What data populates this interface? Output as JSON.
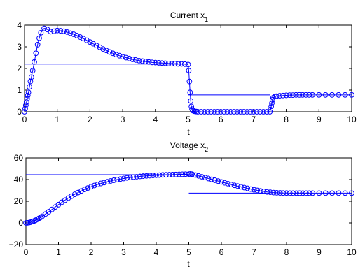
{
  "chart_data": [
    {
      "type": "scatter",
      "title": "Current x",
      "title_subscript": "1",
      "xlabel": "t",
      "ylabel": "",
      "xlim": [
        0,
        10
      ],
      "ylim": [
        0,
        4
      ],
      "xticks": [
        "0",
        "1",
        "2",
        "3",
        "4",
        "5",
        "6",
        "7",
        "8",
        "9",
        "10"
      ],
      "yticks": [
        "0",
        "1",
        "2",
        "3",
        "4"
      ],
      "marker": "circle",
      "color": "#0000ff",
      "series": [
        {
          "style": "markers",
          "x": [
            0.0,
            0.02,
            0.04,
            0.06,
            0.08,
            0.1,
            0.12,
            0.15,
            0.18,
            0.21,
            0.25,
            0.3,
            0.35,
            0.4,
            0.45,
            0.5,
            0.6,
            0.7,
            0.8,
            0.9,
            1.0,
            1.1,
            1.2,
            1.3,
            1.4,
            1.5,
            1.6,
            1.7,
            1.8,
            1.9,
            2.0,
            2.1,
            2.2,
            2.3,
            2.4,
            2.5,
            2.6,
            2.7,
            2.8,
            2.9,
            3.0,
            3.1,
            3.2,
            3.3,
            3.4,
            3.5,
            3.6,
            3.7,
            3.8,
            3.9,
            4.0,
            4.1,
            4.2,
            4.3,
            4.4,
            4.5,
            4.6,
            4.7,
            4.8,
            4.9,
            5.0,
            5.02,
            5.04,
            5.06,
            5.08,
            5.1,
            5.12,
            5.15,
            5.2,
            5.25,
            5.3,
            5.4,
            5.5,
            5.6,
            5.7,
            5.8,
            5.9,
            6.0,
            6.1,
            6.2,
            6.3,
            6.4,
            6.5,
            6.6,
            6.7,
            6.8,
            6.9,
            7.0,
            7.1,
            7.2,
            7.3,
            7.4,
            7.5,
            7.52,
            7.54,
            7.56,
            7.58,
            7.6,
            7.65,
            7.7,
            7.8,
            7.9,
            8.0,
            8.1,
            8.2,
            8.3,
            8.4,
            8.5,
            8.6,
            8.7,
            8.8,
            9.0,
            9.2,
            9.4,
            9.6,
            9.8,
            10.0
          ],
          "y": [
            0.0,
            0.15,
            0.3,
            0.45,
            0.6,
            0.75,
            0.9,
            1.15,
            1.4,
            1.6,
            1.9,
            2.3,
            2.7,
            3.1,
            3.4,
            3.65,
            3.85,
            3.8,
            3.7,
            3.72,
            3.75,
            3.74,
            3.72,
            3.68,
            3.63,
            3.58,
            3.52,
            3.45,
            3.38,
            3.3,
            3.22,
            3.14,
            3.06,
            2.98,
            2.9,
            2.83,
            2.76,
            2.7,
            2.64,
            2.59,
            2.54,
            2.5,
            2.46,
            2.42,
            2.39,
            2.36,
            2.34,
            2.32,
            2.3,
            2.28,
            2.27,
            2.26,
            2.25,
            2.24,
            2.23,
            2.22,
            2.22,
            2.21,
            2.21,
            2.2,
            2.18,
            1.9,
            1.4,
            0.9,
            0.5,
            0.25,
            0.12,
            0.05,
            0.02,
            0.01,
            0.0,
            0.0,
            0.0,
            0.0,
            0.0,
            0.0,
            0.0,
            0.0,
            0.0,
            0.0,
            0.0,
            0.0,
            0.0,
            0.0,
            0.0,
            0.0,
            0.0,
            0.0,
            0.0,
            0.0,
            0.0,
            0.0,
            0.0,
            0.1,
            0.25,
            0.4,
            0.55,
            0.65,
            0.7,
            0.72,
            0.74,
            0.75,
            0.76,
            0.77,
            0.77,
            0.78,
            0.78,
            0.78,
            0.78,
            0.78,
            0.78,
            0.78,
            0.78,
            0.78,
            0.78,
            0.78,
            0.78
          ]
        },
        {
          "style": "line",
          "x": [
            0,
            5
          ],
          "y": [
            2.2,
            2.2
          ]
        },
        {
          "style": "line",
          "x": [
            5,
            7.5
          ],
          "y": [
            0.78,
            0.78
          ]
        }
      ]
    },
    {
      "type": "scatter",
      "title": "Voltage x",
      "title_subscript": "2",
      "xlabel": "t",
      "ylabel": "",
      "xlim": [
        0,
        10
      ],
      "ylim": [
        -20,
        60
      ],
      "xticks": [
        "0",
        "1",
        "2",
        "3",
        "4",
        "5",
        "6",
        "7",
        "8",
        "9",
        "10"
      ],
      "yticks": [
        "−20",
        "0",
        "20",
        "40",
        "60"
      ],
      "marker": "circle",
      "color": "#0000ff",
      "series": [
        {
          "style": "markers",
          "x": [
            0.0,
            0.05,
            0.1,
            0.15,
            0.2,
            0.25,
            0.3,
            0.35,
            0.4,
            0.45,
            0.5,
            0.6,
            0.7,
            0.8,
            0.9,
            1.0,
            1.1,
            1.2,
            1.3,
            1.4,
            1.5,
            1.6,
            1.7,
            1.8,
            1.9,
            2.0,
            2.1,
            2.2,
            2.3,
            2.4,
            2.5,
            2.6,
            2.7,
            2.8,
            2.9,
            3.0,
            3.1,
            3.2,
            3.3,
            3.4,
            3.5,
            3.6,
            3.7,
            3.8,
            3.9,
            4.0,
            4.1,
            4.2,
            4.3,
            4.4,
            4.5,
            4.6,
            4.7,
            4.8,
            4.9,
            5.0,
            5.05,
            5.1,
            5.2,
            5.3,
            5.4,
            5.5,
            5.6,
            5.7,
            5.8,
            5.9,
            6.0,
            6.1,
            6.2,
            6.3,
            6.4,
            6.5,
            6.6,
            6.7,
            6.8,
            6.9,
            7.0,
            7.1,
            7.2,
            7.3,
            7.4,
            7.5,
            7.6,
            7.7,
            7.8,
            7.9,
            8.0,
            8.1,
            8.2,
            8.3,
            8.4,
            8.5,
            8.6,
            8.7,
            8.8,
            9.0,
            9.2,
            9.4,
            9.6,
            9.8,
            10.0
          ],
          "y": [
            0.0,
            0.1,
            0.3,
            0.7,
            1.2,
            1.8,
            2.5,
            3.3,
            4.2,
            5.1,
            6.1,
            8.2,
            10.3,
            12.5,
            14.7,
            16.9,
            19.0,
            21.0,
            22.9,
            24.7,
            26.4,
            28.0,
            29.5,
            30.9,
            32.2,
            33.4,
            34.5,
            35.5,
            36.4,
            37.2,
            38.0,
            38.7,
            39.4,
            40.0,
            40.5,
            41.0,
            41.5,
            41.9,
            42.3,
            42.6,
            42.9,
            43.2,
            43.4,
            43.6,
            43.8,
            44.0,
            44.1,
            44.3,
            44.4,
            44.5,
            44.6,
            44.7,
            44.8,
            44.9,
            45.0,
            45.1,
            45.2,
            45.0,
            44.2,
            43.4,
            42.6,
            41.8,
            41.0,
            40.2,
            39.4,
            38.6,
            37.8,
            37.0,
            36.2,
            35.4,
            34.7,
            34.0,
            33.3,
            32.6,
            31.9,
            31.2,
            30.6,
            30.0,
            29.5,
            29.0,
            28.6,
            28.3,
            28.0,
            27.8,
            27.7,
            27.6,
            27.6,
            27.5,
            27.5,
            27.5,
            27.5,
            27.5,
            27.5,
            27.5,
            27.5,
            27.5,
            27.5,
            27.5,
            27.5,
            27.5,
            27.5
          ]
        },
        {
          "style": "line",
          "x": [
            0,
            5
          ],
          "y": [
            44.5,
            44.5
          ]
        },
        {
          "style": "line",
          "x": [
            5,
            7.5
          ],
          "y": [
            27.5,
            27.5
          ]
        }
      ]
    }
  ]
}
